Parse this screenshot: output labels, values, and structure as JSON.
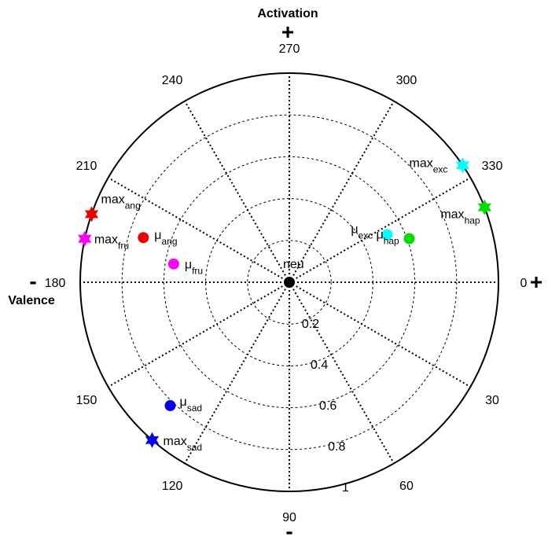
{
  "chart_data": {
    "type": "scatter",
    "coordinate_system": "polar",
    "angle_direction": "clockwise",
    "zero_angle_position": "right",
    "radial_range": [
      0,
      1
    ],
    "grid": true,
    "angle_ticks": [
      "0",
      "30",
      "60",
      "90",
      "120",
      "150",
      "180",
      "210",
      "240",
      "270",
      "300",
      "330"
    ],
    "radial_ticks": [
      "0.2",
      "0.4",
      "0.6",
      "0.8",
      "1"
    ],
    "x_axis": {
      "label": "Valence",
      "neg_sign": "-",
      "pos_sign": "+"
    },
    "y_axis": {
      "label": "Activation",
      "neg_sign": "-",
      "pos_sign": "+"
    },
    "points": [
      {
        "label": "neu",
        "sub": "",
        "angle": 0,
        "r": 0.0,
        "marker": "circle",
        "color": "#000000"
      },
      {
        "label": "μ",
        "sub": "exc",
        "angle": 334,
        "r": 0.52,
        "marker": "circle",
        "color": "#00ffff"
      },
      {
        "label": "μ",
        "sub": "hap",
        "angle": 340,
        "r": 0.61,
        "marker": "circle",
        "color": "#00dd00"
      },
      {
        "label": "max",
        "sub": "exc",
        "angle": 326,
        "r": 1.0,
        "marker": "star",
        "color": "#00ffff"
      },
      {
        "label": "max",
        "sub": "hap",
        "angle": 339,
        "r": 1.0,
        "marker": "star",
        "color": "#00dd00"
      },
      {
        "label": "μ",
        "sub": "ang",
        "angle": 197,
        "r": 0.73,
        "marker": "circle",
        "color": "#ee0000"
      },
      {
        "label": "μ",
        "sub": "fru",
        "angle": 189,
        "r": 0.56,
        "marker": "circle",
        "color": "#ff00ff"
      },
      {
        "label": "max",
        "sub": "ang",
        "angle": 199,
        "r": 1.0,
        "marker": "star",
        "color": "#ee0000"
      },
      {
        "label": "max",
        "sub": "fru",
        "angle": 192,
        "r": 1.0,
        "marker": "star",
        "color": "#ff00ff"
      },
      {
        "label": "μ",
        "sub": "sad",
        "angle": 134,
        "r": 0.82,
        "marker": "circle",
        "color": "#0000ee"
      },
      {
        "label": "max",
        "sub": "sad",
        "angle": 131,
        "r": 1.0,
        "marker": "star",
        "color": "#0000ee"
      }
    ]
  }
}
